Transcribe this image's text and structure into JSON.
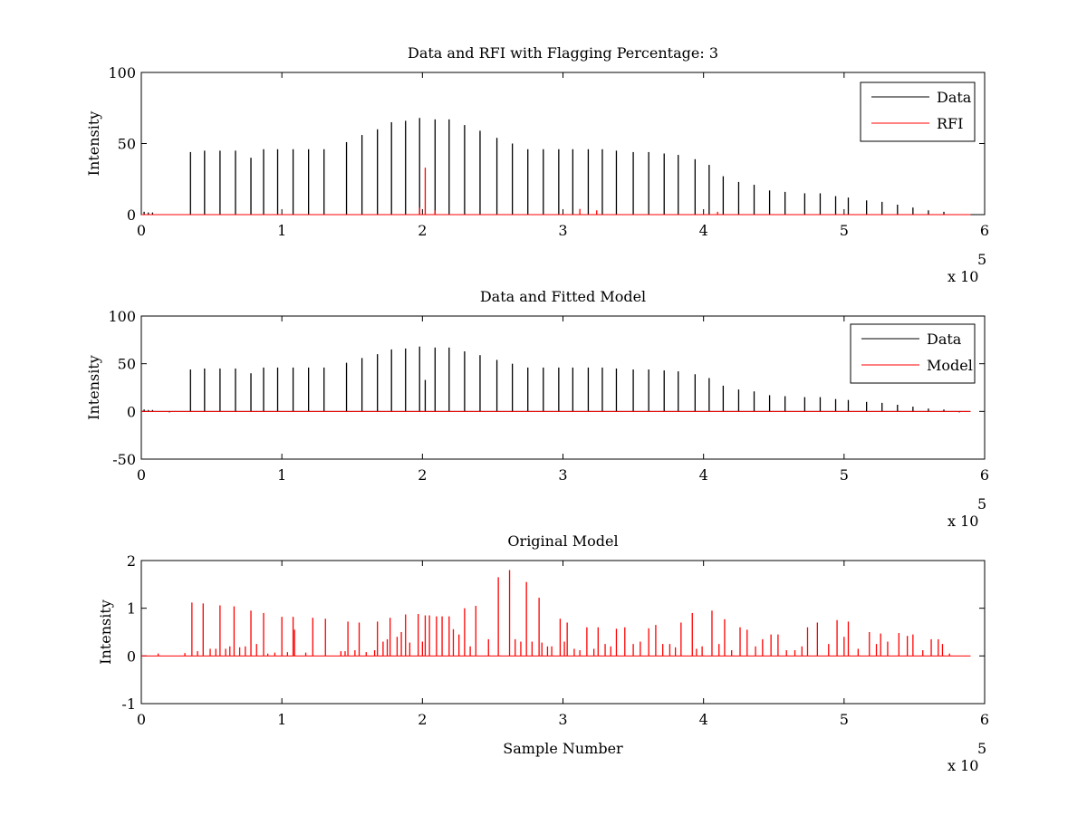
{
  "chart_data": [
    {
      "type": "line",
      "title": "Data and RFI with Flagging Percentage: 3",
      "xlabel": "",
      "ylabel": "Intensity",
      "xlim": [
        0,
        600000
      ],
      "ylim": [
        0,
        100
      ],
      "xticks": [
        0,
        1,
        2,
        3,
        4,
        5,
        6
      ],
      "yticks": [
        0,
        50,
        100
      ],
      "x_multiplier": "x 10",
      "x_multiplier_exp": "5",
      "legend_position": "top-right",
      "grid": false,
      "baseline": 0,
      "x_end": 590000,
      "series": [
        {
          "name": "Data",
          "color": "#000000",
          "spikes": [
            [
              2000,
              2
            ],
            [
              5000,
              1.5
            ],
            [
              8000,
              1.5
            ],
            [
              35000,
              44
            ],
            [
              45000,
              45
            ],
            [
              56000,
              45
            ],
            [
              67000,
              45
            ],
            [
              78000,
              40
            ],
            [
              87000,
              46
            ],
            [
              97000,
              46
            ],
            [
              108000,
              46
            ],
            [
              119000,
              46
            ],
            [
              130000,
              46
            ],
            [
              146000,
              51
            ],
            [
              157000,
              56
            ],
            [
              168000,
              60
            ],
            [
              178000,
              65
            ],
            [
              188000,
              66
            ],
            [
              198000,
              68
            ],
            [
              209000,
              67
            ],
            [
              219000,
              67
            ],
            [
              230000,
              63
            ],
            [
              241000,
              59
            ],
            [
              253000,
              54
            ],
            [
              264000,
              50
            ],
            [
              275000,
              46
            ],
            [
              286000,
              46
            ],
            [
              297000,
              46
            ],
            [
              307000,
              46
            ],
            [
              318000,
              46
            ],
            [
              328000,
              46
            ],
            [
              338000,
              45
            ],
            [
              350000,
              44
            ],
            [
              361000,
              44
            ],
            [
              372000,
              43
            ],
            [
              382000,
              42
            ],
            [
              394000,
              39
            ],
            [
              404000,
              35
            ],
            [
              414000,
              27
            ],
            [
              425000,
              23
            ],
            [
              436000,
              21
            ],
            [
              447000,
              17
            ],
            [
              458000,
              16
            ],
            [
              472000,
              15
            ],
            [
              483000,
              15
            ],
            [
              494000,
              13
            ],
            [
              503000,
              12
            ],
            [
              516000,
              10
            ],
            [
              527000,
              9
            ],
            [
              538000,
              7
            ],
            [
              549000,
              5
            ],
            [
              560000,
              3
            ],
            [
              571000,
              2
            ]
          ]
        },
        {
          "name": "RFI",
          "color": "#ff0000",
          "spikes": [
            [
              198000,
              5
            ],
            [
              202000,
              33
            ],
            [
              209000,
              3
            ],
            [
              312000,
              4
            ],
            [
              324000,
              3
            ],
            [
              410000,
              2
            ]
          ]
        }
      ]
    },
    {
      "type": "line",
      "title": "Data and Fitted Model",
      "xlabel": "",
      "ylabel": "Intensity",
      "xlim": [
        0,
        600000
      ],
      "ylim": [
        -50,
        100
      ],
      "xticks": [
        0,
        1,
        2,
        3,
        4,
        5,
        6
      ],
      "yticks": [
        -50,
        0,
        50,
        100
      ],
      "x_multiplier": "x 10",
      "x_multiplier_exp": "5",
      "legend_position": "top-right",
      "grid": false,
      "baseline": 0,
      "x_end": 590000,
      "series": [
        {
          "name": "Data",
          "color": "#000000",
          "spikes": [
            [
              2000,
              2
            ],
            [
              5000,
              1.5
            ],
            [
              8000,
              1.5
            ],
            [
              20000,
              -1
            ],
            [
              35000,
              44
            ],
            [
              45000,
              45
            ],
            [
              56000,
              45
            ],
            [
              67000,
              45
            ],
            [
              78000,
              40
            ],
            [
              87000,
              46
            ],
            [
              97000,
              46
            ],
            [
              108000,
              46
            ],
            [
              119000,
              46
            ],
            [
              130000,
              46
            ],
            [
              146000,
              51
            ],
            [
              157000,
              56
            ],
            [
              168000,
              60
            ],
            [
              178000,
              65
            ],
            [
              188000,
              66
            ],
            [
              198000,
              68
            ],
            [
              202000,
              33
            ],
            [
              209000,
              67
            ],
            [
              219000,
              67
            ],
            [
              230000,
              63
            ],
            [
              241000,
              59
            ],
            [
              253000,
              54
            ],
            [
              264000,
              50
            ],
            [
              275000,
              46
            ],
            [
              286000,
              46
            ],
            [
              297000,
              46
            ],
            [
              307000,
              46
            ],
            [
              318000,
              46
            ],
            [
              328000,
              46
            ],
            [
              338000,
              45
            ],
            [
              350000,
              44
            ],
            [
              361000,
              44
            ],
            [
              372000,
              43
            ],
            [
              382000,
              42
            ],
            [
              394000,
              39
            ],
            [
              404000,
              35
            ],
            [
              414000,
              27
            ],
            [
              425000,
              23
            ],
            [
              436000,
              21
            ],
            [
              447000,
              17
            ],
            [
              458000,
              16
            ],
            [
              472000,
              15
            ],
            [
              483000,
              15
            ],
            [
              494000,
              13
            ],
            [
              503000,
              12
            ],
            [
              516000,
              10
            ],
            [
              527000,
              9
            ],
            [
              538000,
              7
            ],
            [
              549000,
              5
            ],
            [
              560000,
              3
            ],
            [
              571000,
              2
            ],
            [
              582000,
              -1
            ]
          ]
        },
        {
          "name": "Model",
          "color": "#ff0000",
          "spikes": []
        }
      ]
    },
    {
      "type": "line",
      "title": "Original Model",
      "xlabel": "Sample Number",
      "ylabel": "Intensity",
      "xlim": [
        0,
        600000
      ],
      "ylim": [
        -1,
        2
      ],
      "xticks": [
        0,
        1,
        2,
        3,
        4,
        5,
        6
      ],
      "yticks": [
        -1,
        0,
        1,
        2
      ],
      "x_multiplier": "x 10",
      "x_multiplier_exp": "5",
      "legend_position": "none",
      "grid": false,
      "baseline": 0,
      "x_end": 590000,
      "series": [
        {
          "name": "",
          "color": "#ff0000",
          "spikes": [
            [
              12000,
              0.05
            ],
            [
              31000,
              0.06
            ],
            [
              36000,
              1.12
            ],
            [
              40000,
              0.1
            ],
            [
              44000,
              1.1
            ],
            [
              49000,
              0.15
            ],
            [
              53000,
              0.15
            ],
            [
              56000,
              1.06
            ],
            [
              60000,
              0.15
            ],
            [
              63000,
              0.2
            ],
            [
              66000,
              1.04
            ],
            [
              70000,
              0.18
            ],
            [
              74000,
              0.2
            ],
            [
              78000,
              0.95
            ],
            [
              82000,
              0.25
            ],
            [
              87000,
              0.9
            ],
            [
              90000,
              0.05
            ],
            [
              95000,
              0.07
            ],
            [
              100000,
              0.82
            ],
            [
              104000,
              0.08
            ],
            [
              108000,
              0.82
            ],
            [
              109000,
              0.55
            ],
            [
              117000,
              0.07
            ],
            [
              122000,
              0.8
            ],
            [
              131000,
              0.78
            ],
            [
              142000,
              0.1
            ],
            [
              145000,
              0.1
            ],
            [
              147000,
              0.72
            ],
            [
              152000,
              0.12
            ],
            [
              155000,
              0.7
            ],
            [
              160000,
              0.08
            ],
            [
              166000,
              0.12
            ],
            [
              168000,
              0.72
            ],
            [
              172000,
              0.3
            ],
            [
              175000,
              0.35
            ],
            [
              177000,
              0.8
            ],
            [
              182000,
              0.4
            ],
            [
              185000,
              0.5
            ],
            [
              188000,
              0.87
            ],
            [
              191000,
              0.28
            ],
            [
              197000,
              0.88
            ],
            [
              200000,
              0.3
            ],
            [
              202000,
              0.85
            ],
            [
              205000,
              0.85
            ],
            [
              210000,
              0.83
            ],
            [
              214000,
              0.83
            ],
            [
              219000,
              0.83
            ],
            [
              222000,
              0.56
            ],
            [
              226000,
              0.45
            ],
            [
              230000,
              1.0
            ],
            [
              234000,
              0.2
            ],
            [
              238000,
              1.05
            ],
            [
              247000,
              0.35
            ],
            [
              254000,
              1.65
            ],
            [
              262000,
              1.8
            ],
            [
              266000,
              0.35
            ],
            [
              270000,
              0.3
            ],
            [
              274000,
              1.55
            ],
            [
              278000,
              0.3
            ],
            [
              283000,
              1.22
            ],
            [
              285000,
              0.28
            ],
            [
              289000,
              0.2
            ],
            [
              292000,
              0.2
            ],
            [
              298000,
              0.78
            ],
            [
              301000,
              0.3
            ],
            [
              303000,
              0.7
            ],
            [
              308000,
              0.15
            ],
            [
              312000,
              0.12
            ],
            [
              317000,
              0.6
            ],
            [
              322000,
              0.15
            ],
            [
              325000,
              0.6
            ],
            [
              330000,
              0.25
            ],
            [
              334000,
              0.2
            ],
            [
              338000,
              0.57
            ],
            [
              344000,
              0.6
            ],
            [
              350000,
              0.25
            ],
            [
              355000,
              0.3
            ],
            [
              361000,
              0.58
            ],
            [
              366000,
              0.65
            ],
            [
              371000,
              0.25
            ],
            [
              376000,
              0.25
            ],
            [
              380000,
              0.18
            ],
            [
              384000,
              0.7
            ],
            [
              392000,
              0.9
            ],
            [
              395000,
              0.15
            ],
            [
              399000,
              0.2
            ],
            [
              406000,
              0.95
            ],
            [
              411000,
              0.25
            ],
            [
              415000,
              0.77
            ],
            [
              420000,
              0.12
            ],
            [
              426000,
              0.6
            ],
            [
              431000,
              0.55
            ],
            [
              437000,
              0.2
            ],
            [
              442000,
              0.35
            ],
            [
              448000,
              0.45
            ],
            [
              453000,
              0.45
            ],
            [
              459000,
              0.12
            ],
            [
              465000,
              0.12
            ],
            [
              470000,
              0.2
            ],
            [
              474000,
              0.6
            ],
            [
              481000,
              0.7
            ],
            [
              489000,
              0.25
            ],
            [
              495000,
              0.75
            ],
            [
              500000,
              0.4
            ],
            [
              503000,
              0.72
            ],
            [
              510000,
              0.15
            ],
            [
              518000,
              0.5
            ],
            [
              523000,
              0.25
            ],
            [
              526000,
              0.47
            ],
            [
              531000,
              0.3
            ],
            [
              539000,
              0.48
            ],
            [
              545000,
              0.42
            ],
            [
              549000,
              0.45
            ],
            [
              556000,
              0.12
            ],
            [
              562000,
              0.35
            ],
            [
              567000,
              0.35
            ],
            [
              570000,
              0.25
            ],
            [
              575000,
              0.05
            ]
          ]
        }
      ]
    }
  ]
}
